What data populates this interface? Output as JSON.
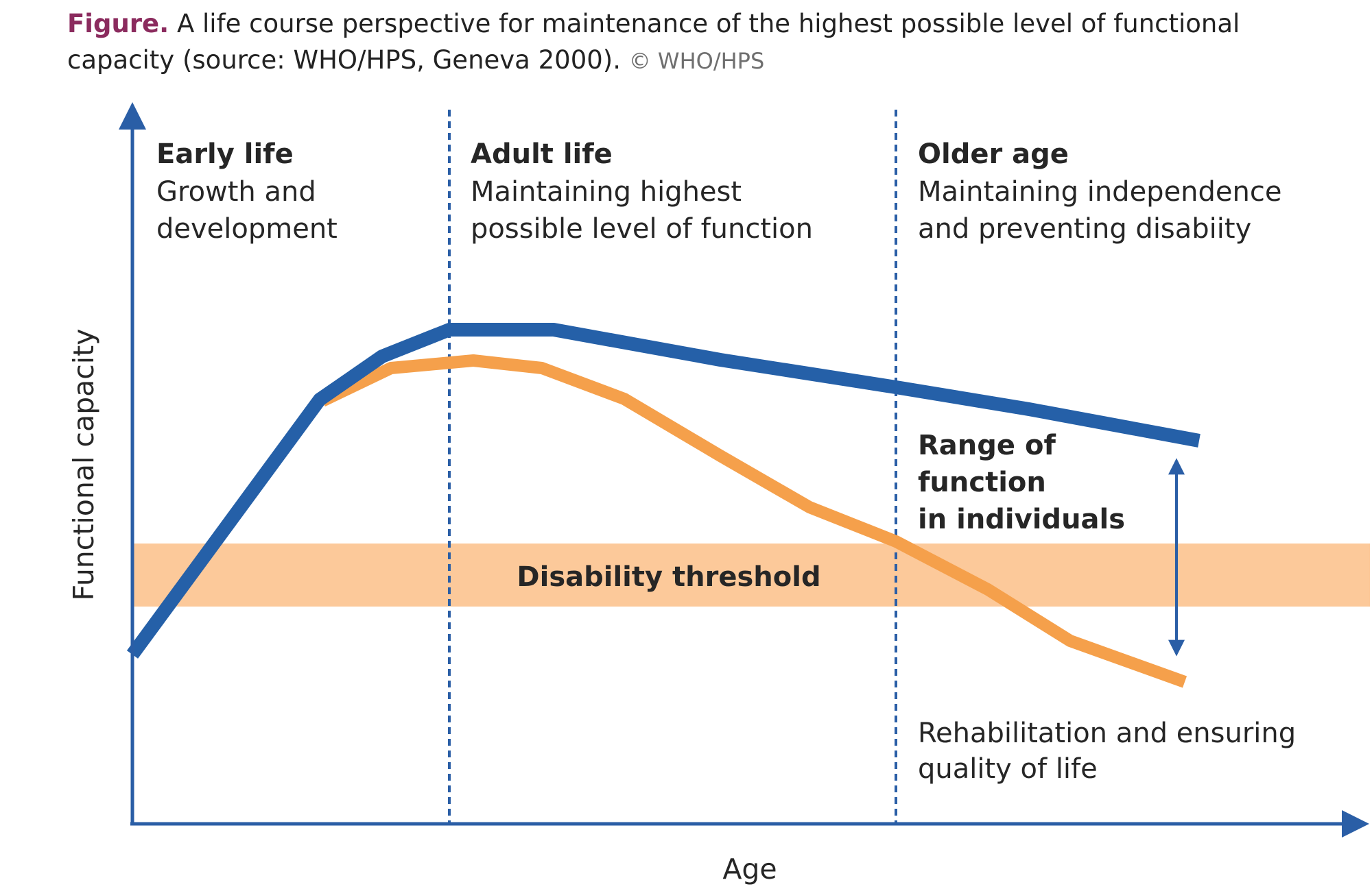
{
  "caption": {
    "lead": "Figure.",
    "text": "A life course perspective for maintenance of the highest possible level of functional capacity (source: WHO/HPS, Geneva 2000).",
    "credit": "© WHO/HPS"
  },
  "axes": {
    "y_label": "Functional capacity",
    "x_label": "Age"
  },
  "stages": [
    {
      "title": "Early life",
      "lines": [
        "Growth and",
        "development"
      ]
    },
    {
      "title": "Adult life",
      "lines": [
        "Maintaining highest",
        "possible level of function"
      ]
    },
    {
      "title": "Older age",
      "lines": [
        "Maintaining independence",
        "and preventing disabiity"
      ]
    }
  ],
  "threshold_label": "Disability threshold",
  "range_label": [
    "Range of",
    "function",
    "in individuals"
  ],
  "rehab_label": [
    "Rehabilitation and ensuring",
    "quality of life"
  ],
  "colors": {
    "high_curve": "#2560a8",
    "low_curve": "#f5a04b",
    "threshold_band": "#fcc99a",
    "axis": "#2a5ea6",
    "divider": "#2a5ea6",
    "caption_lead": "#8b2b5e"
  }
}
